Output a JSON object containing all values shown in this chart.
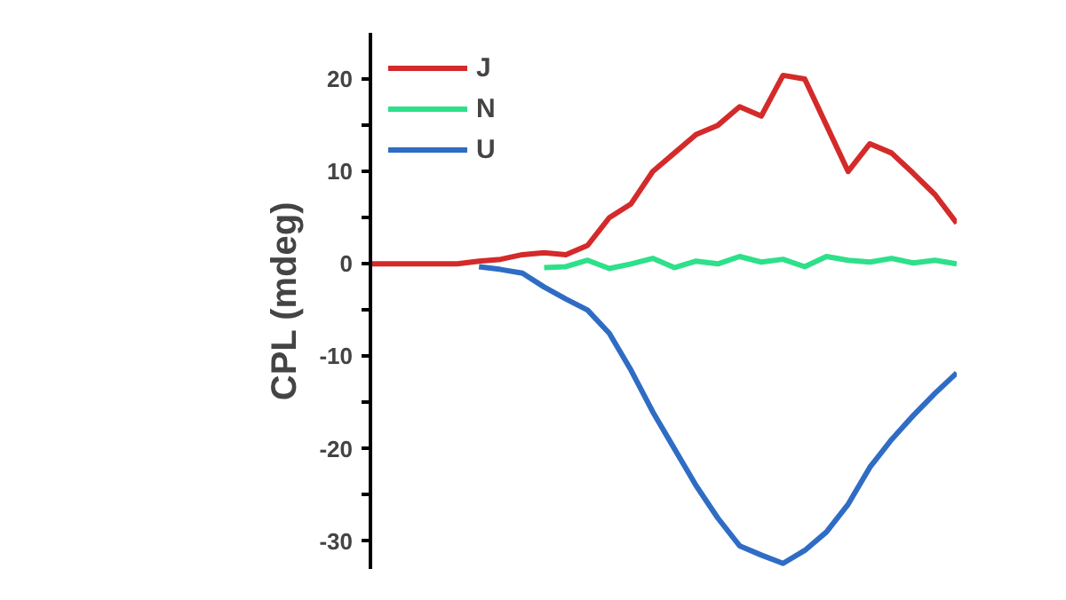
{
  "chart_data": {
    "type": "line",
    "ylabel": "CPL (mdeg)",
    "categories": [
      null,
      null,
      null,
      null,
      null,
      null,
      null,
      null,
      null,
      null,
      null,
      null,
      null,
      null,
      null,
      null,
      null,
      null,
      null,
      null,
      null,
      null,
      null,
      null,
      null,
      null,
      null,
      null
    ],
    "series": [
      {
        "name": "J",
        "color": "#d42a2a",
        "values": [
          0,
          0,
          0,
          0,
          0,
          0.3,
          0.5,
          1,
          1.2,
          1,
          2,
          5,
          6.5,
          10,
          12,
          14,
          15,
          17,
          16,
          20.4,
          20,
          15,
          10,
          13,
          12,
          9.8,
          7.5,
          4.4
        ]
      },
      {
        "name": "N",
        "color": "#2de08a",
        "values": [
          null,
          null,
          null,
          null,
          null,
          null,
          null,
          null,
          -0.4,
          -0.3,
          0.4,
          -0.5,
          0,
          0.6,
          -0.4,
          0.3,
          0,
          0.8,
          0.2,
          0.5,
          -0.3,
          0.8,
          0.4,
          0.2,
          0.6,
          0.1,
          0.4,
          0
        ]
      },
      {
        "name": "U",
        "color": "#2f6cc4",
        "values": [
          null,
          null,
          null,
          null,
          null,
          -0.3,
          -0.6,
          -1,
          -2.5,
          -3.8,
          -5,
          -7.5,
          -11.5,
          -16,
          -20,
          -24,
          -27.5,
          -30.5,
          -31.5,
          -32.4,
          -31,
          -29,
          -26,
          -22,
          -19,
          -16.4,
          -14,
          -11.8
        ]
      }
    ],
    "ylim": [
      -33,
      25
    ],
    "yticks": [
      -30,
      {
        "value": -25,
        "label": null
      },
      -20,
      {
        "value": -15,
        "label": null
      },
      -10,
      {
        "value": -5,
        "label": null
      },
      0,
      {
        "value": 5,
        "label": null
      },
      10,
      {
        "value": 15,
        "label": null
      },
      20
    ],
    "tick_labels": "y",
    "grid": false,
    "legend": "top left",
    "marker": "none",
    "line_style": "solid"
  }
}
